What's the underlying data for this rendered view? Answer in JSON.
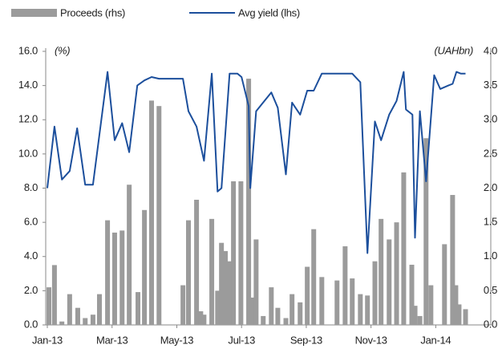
{
  "chart_data": {
    "type": "bar",
    "y_unit_label": "(%)",
    "y2_unit_label": "(UAHbn)",
    "xlim": [
      -0.05,
      13.7
    ],
    "xticks": [
      {
        "value": 0,
        "label": "Jan-13"
      },
      {
        "value": 2,
        "label": "Mar-13"
      },
      {
        "value": 4,
        "label": "May-13"
      },
      {
        "value": 6,
        "label": "Jul-13"
      },
      {
        "value": 8,
        "label": "Sep-13"
      },
      {
        "value": 10,
        "label": "Nov-13"
      },
      {
        "value": 12,
        "label": "Jan-14"
      }
    ],
    "ylim": [
      0,
      16
    ],
    "yticks": [
      {
        "value": 0,
        "label": "0.0"
      },
      {
        "value": 2,
        "label": "2.0"
      },
      {
        "value": 4,
        "label": "4.0"
      },
      {
        "value": 6,
        "label": "6.0"
      },
      {
        "value": 8,
        "label": "8.0"
      },
      {
        "value": 10,
        "label": "10.0"
      },
      {
        "value": 12,
        "label": "12.0"
      },
      {
        "value": 14,
        "label": "14.0"
      },
      {
        "value": 16,
        "label": "16.0"
      }
    ],
    "y2lim": [
      0,
      4
    ],
    "y2ticks": [
      {
        "value": 0,
        "label": "0.0"
      },
      0.5,
      {
        "value": 1,
        "label": "1.0"
      },
      1.5,
      {
        "value": 2,
        "label": "2.0"
      },
      2.5,
      {
        "value": 3,
        "label": "3.0"
      },
      3.5,
      {
        "value": 4,
        "label": "4.0"
      }
    ],
    "legend": "top-left",
    "series": [
      {
        "name": "Proceeds (rhs)",
        "type": "bar",
        "axis": "y2",
        "color": "#9b9b9b",
        "x": [
          0.05,
          0.22,
          0.45,
          0.69,
          0.94,
          1.17,
          1.41,
          1.61,
          1.86,
          2.08,
          2.31,
          2.53,
          2.8,
          3.0,
          3.22,
          3.45,
          4.19,
          4.36,
          4.61,
          4.74,
          4.84,
          5.08,
          5.26,
          5.38,
          5.5,
          5.63,
          5.75,
          5.98,
          6.22,
          6.32,
          6.45,
          6.67,
          6.92,
          7.12,
          7.37,
          7.56,
          7.81,
          8.03,
          8.23,
          8.48,
          8.95,
          9.2,
          9.42,
          9.67,
          9.89,
          10.12,
          10.31,
          10.56,
          10.79,
          11.01,
          11.26,
          11.36,
          11.51,
          11.7,
          11.85,
          12.27,
          12.52,
          12.62,
          12.72,
          12.92
        ],
        "values": [
          0.55,
          0.875,
          0.05,
          0.45,
          0.25,
          0.1,
          0.15,
          0.45,
          1.53,
          1.35,
          1.38,
          2.05,
          0.48,
          1.68,
          3.28,
          3.2,
          0.58,
          1.53,
          1.83,
          0.2,
          0.15,
          1.55,
          0.5,
          1.2,
          1.08,
          0.93,
          2.1,
          2.1,
          3.6,
          0.4,
          1.25,
          0.13,
          0.55,
          0.25,
          0.1,
          0.45,
          0.33,
          0.85,
          1.4,
          0.7,
          0.65,
          1.15,
          0.68,
          0.45,
          0.43,
          0.93,
          1.55,
          1.25,
          1.5,
          2.23,
          0.88,
          0.28,
          0.13,
          2.73,
          0.58,
          1.18,
          1.9,
          0.58,
          0.3,
          0.23
        ]
      },
      {
        "name": "Avg yield (lhs)",
        "type": "line",
        "axis": "y",
        "color": "#1c4f9c",
        "x": [
          0.0,
          0.22,
          0.45,
          0.69,
          0.92,
          1.17,
          1.41,
          1.86,
          2.08,
          2.31,
          2.53,
          2.78,
          3.0,
          3.22,
          3.45,
          4.19,
          4.36,
          4.61,
          4.84,
          5.08,
          5.26,
          5.38,
          5.63,
          5.87,
          6.0,
          6.22,
          6.27,
          6.45,
          6.92,
          7.12,
          7.37,
          7.56,
          7.81,
          8.03,
          8.23,
          8.48,
          8.95,
          9.42,
          9.67,
          9.89,
          10.12,
          10.31,
          10.56,
          10.79,
          11.01,
          11.08,
          11.28,
          11.36,
          11.51,
          11.7,
          11.95,
          12.14,
          12.39,
          12.52,
          12.64,
          12.77,
          12.92
        ],
        "values": [
          8.0,
          11.6,
          8.5,
          9.0,
          11.5,
          8.2,
          8.2,
          14.8,
          10.8,
          11.8,
          10.1,
          14.0,
          14.3,
          14.5,
          14.4,
          14.4,
          12.5,
          11.6,
          9.6,
          14.7,
          7.8,
          8.0,
          14.7,
          14.7,
          14.5,
          12.8,
          8.0,
          12.5,
          13.6,
          12.7,
          8.8,
          13.0,
          12.3,
          13.7,
          13.7,
          14.7,
          14.7,
          14.7,
          14.2,
          4.2,
          11.9,
          10.8,
          12.3,
          13.1,
          14.8,
          12.6,
          12.3,
          5.1,
          12.5,
          8.4,
          14.6,
          13.8,
          14.0,
          14.1,
          14.8,
          14.7,
          14.7
        ]
      }
    ]
  }
}
